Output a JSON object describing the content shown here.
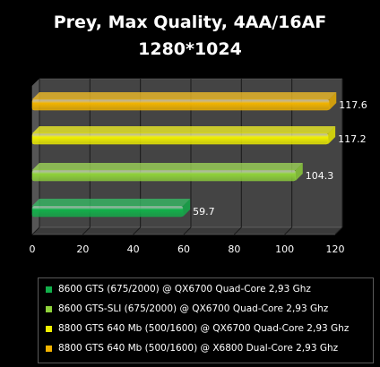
{
  "chart_data": {
    "type": "bar",
    "orientation": "horizontal",
    "title": "Prey, Max Quality, 4AA/16AF",
    "subtitle": "1280*1024",
    "xlim": [
      0,
      120
    ],
    "x_ticks": [
      "0",
      "20",
      "40",
      "60",
      "80",
      "100",
      "120"
    ],
    "grid": true,
    "legend_position": "bottom",
    "series": [
      {
        "name": "8800 GTS 640 Mb  (500/1600) @ X6800 Dual-Core 2,93 Ghz",
        "value": 117.6,
        "label": "117.6",
        "color": "#f2b400"
      },
      {
        "name": "8800 GTS 640 Mb  (500/1600) @ QX6700 Quad-Core 2,93 Ghz",
        "value": 117.2,
        "label": "117.2",
        "color": "#f0f000"
      },
      {
        "name": "8600 GTS-SLI (675/2000) @ QX6700 Quad-Core 2,93 Ghz",
        "value": 104.3,
        "label": "104.3",
        "color": "#8fd23a"
      },
      {
        "name": "8600 GTS (675/2000) @ QX6700 Quad-Core 2,93 Ghz",
        "value": 59.7,
        "label": "59.7",
        "color": "#12b04a"
      }
    ],
    "legend_order": [
      3,
      2,
      1,
      0
    ]
  }
}
